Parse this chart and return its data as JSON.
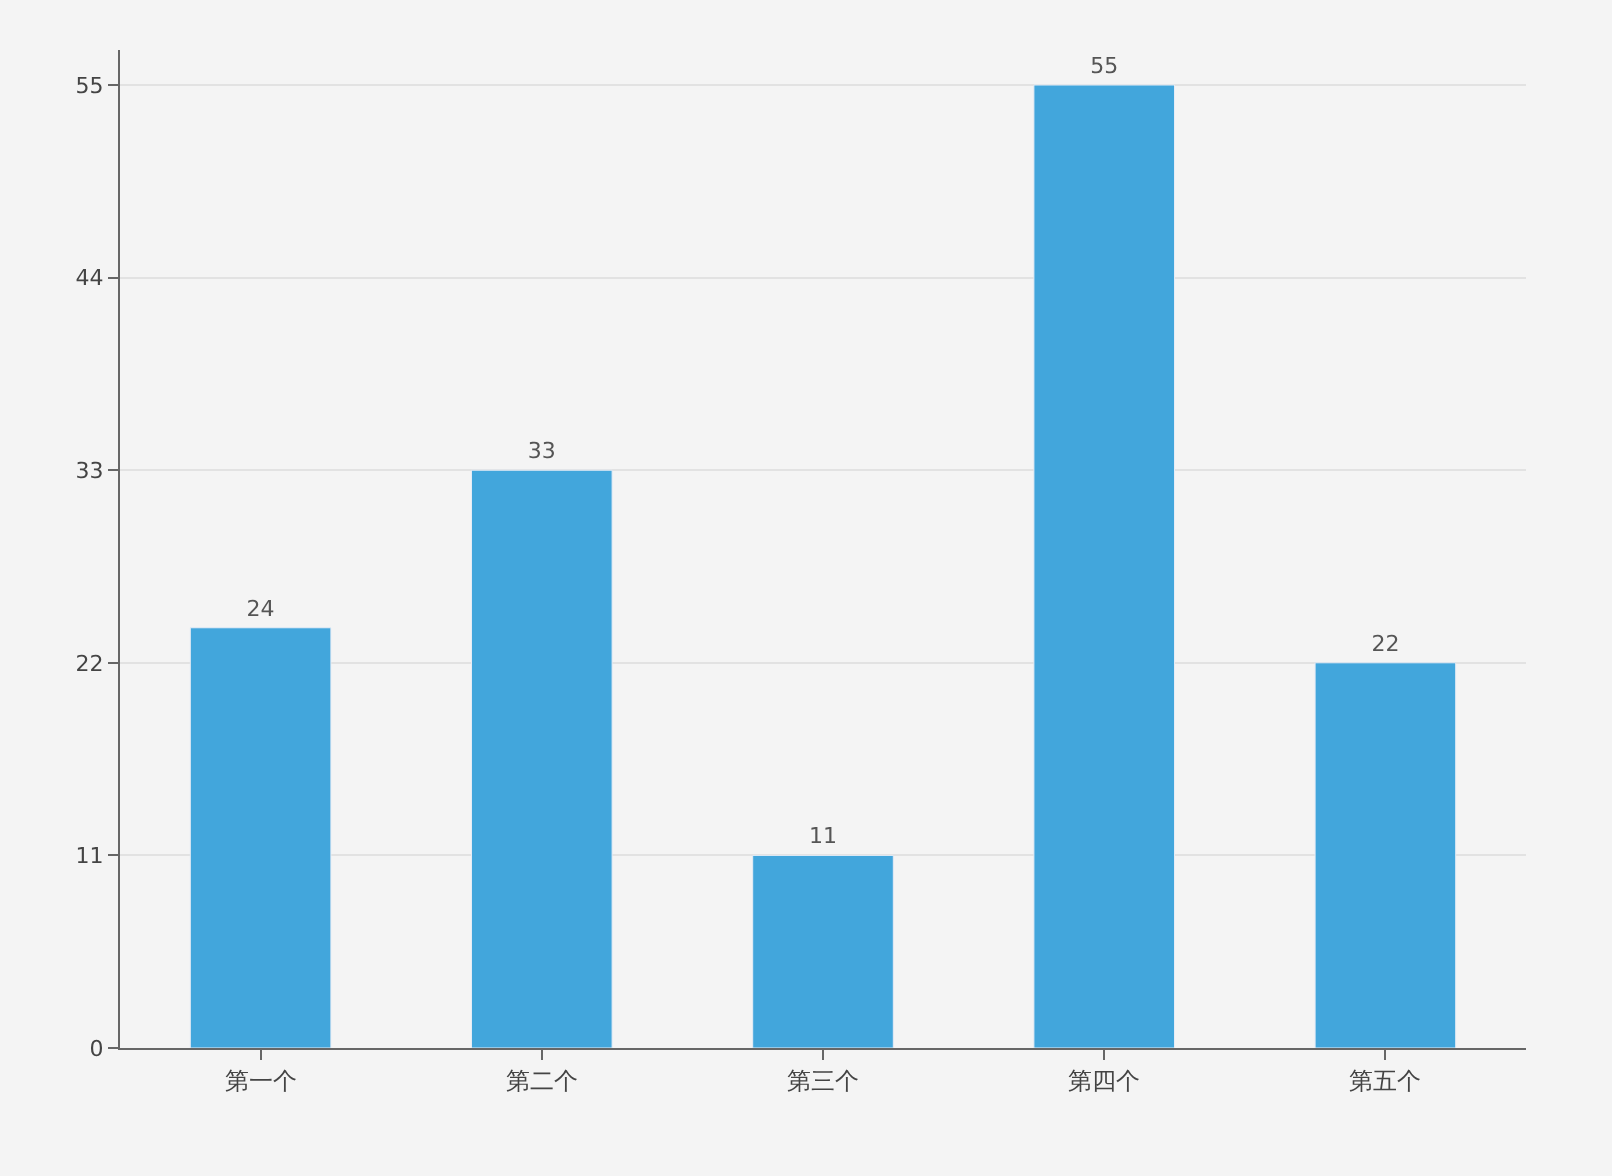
{
  "chart_data": {
    "type": "bar",
    "categories": [
      "第一个",
      "第二个",
      "第三个",
      "第四个",
      "第五个"
    ],
    "values": [
      24,
      33,
      11,
      55,
      22
    ],
    "color": "#42a6dc",
    "ylim": [
      0,
      57
    ],
    "yticks": [
      0,
      11,
      22,
      33,
      44,
      55
    ],
    "grid": "y",
    "data_labels": true,
    "legend": false
  }
}
